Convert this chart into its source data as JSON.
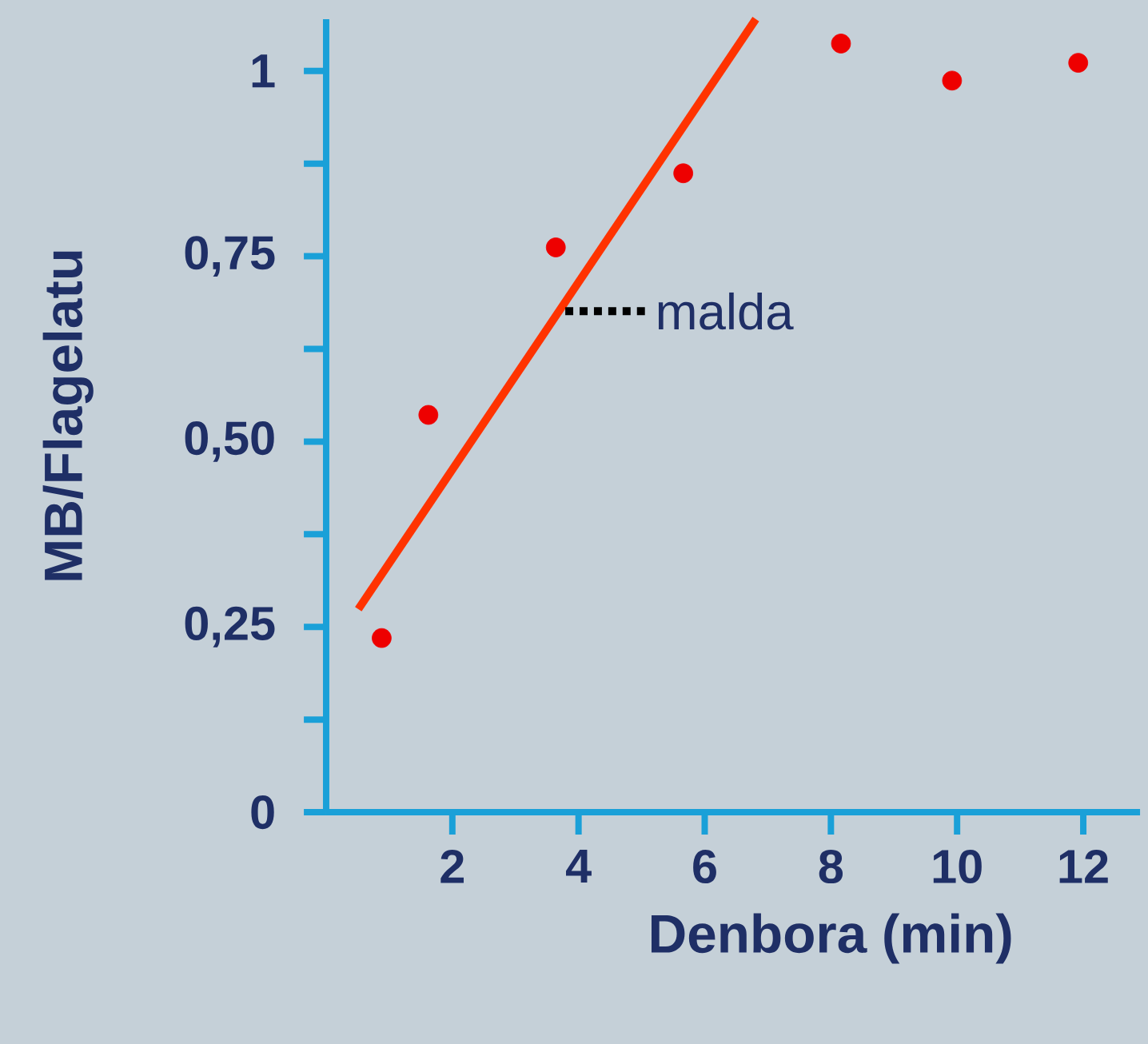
{
  "chart_data": {
    "type": "scatter",
    "xlabel": "Denbora (min)",
    "ylabel": "MB/Flagelatu",
    "xlim": [
      0,
      12.9
    ],
    "ylim": [
      0,
      1.07
    ],
    "xticks": [
      2,
      4,
      6,
      8,
      10,
      12
    ],
    "yticks": [
      0,
      {
        "value": 0.125,
        "label": null
      },
      {
        "value": 0.25,
        "label": "0,25"
      },
      {
        "value": 0.375,
        "label": null
      },
      {
        "value": 0.5,
        "label": "0,50"
      },
      {
        "value": 0.625,
        "label": null
      },
      {
        "value": 0.75,
        "label": "0,75"
      },
      {
        "value": 0.875,
        "label": null
      },
      1
    ],
    "series": [
      {
        "color": "#ee0000",
        "marker": "circle",
        "x": [
          0.88,
          1.62,
          3.64,
          5.66,
          8.16,
          9.92,
          11.92
        ],
        "values": [
          0.235,
          0.536,
          0.762,
          0.862,
          1.037,
          0.987,
          1.011
        ]
      },
      {
        "type": "line",
        "color": "#ff3300",
        "marker": "none",
        "x": [
          0.51,
          6.81
        ],
        "values": [
          0.274,
          1.07
        ]
      }
    ],
    "grid": false,
    "annotations": [
      {
        "text": "malda",
        "x": 3.79,
        "y": 0.676
      }
    ]
  }
}
